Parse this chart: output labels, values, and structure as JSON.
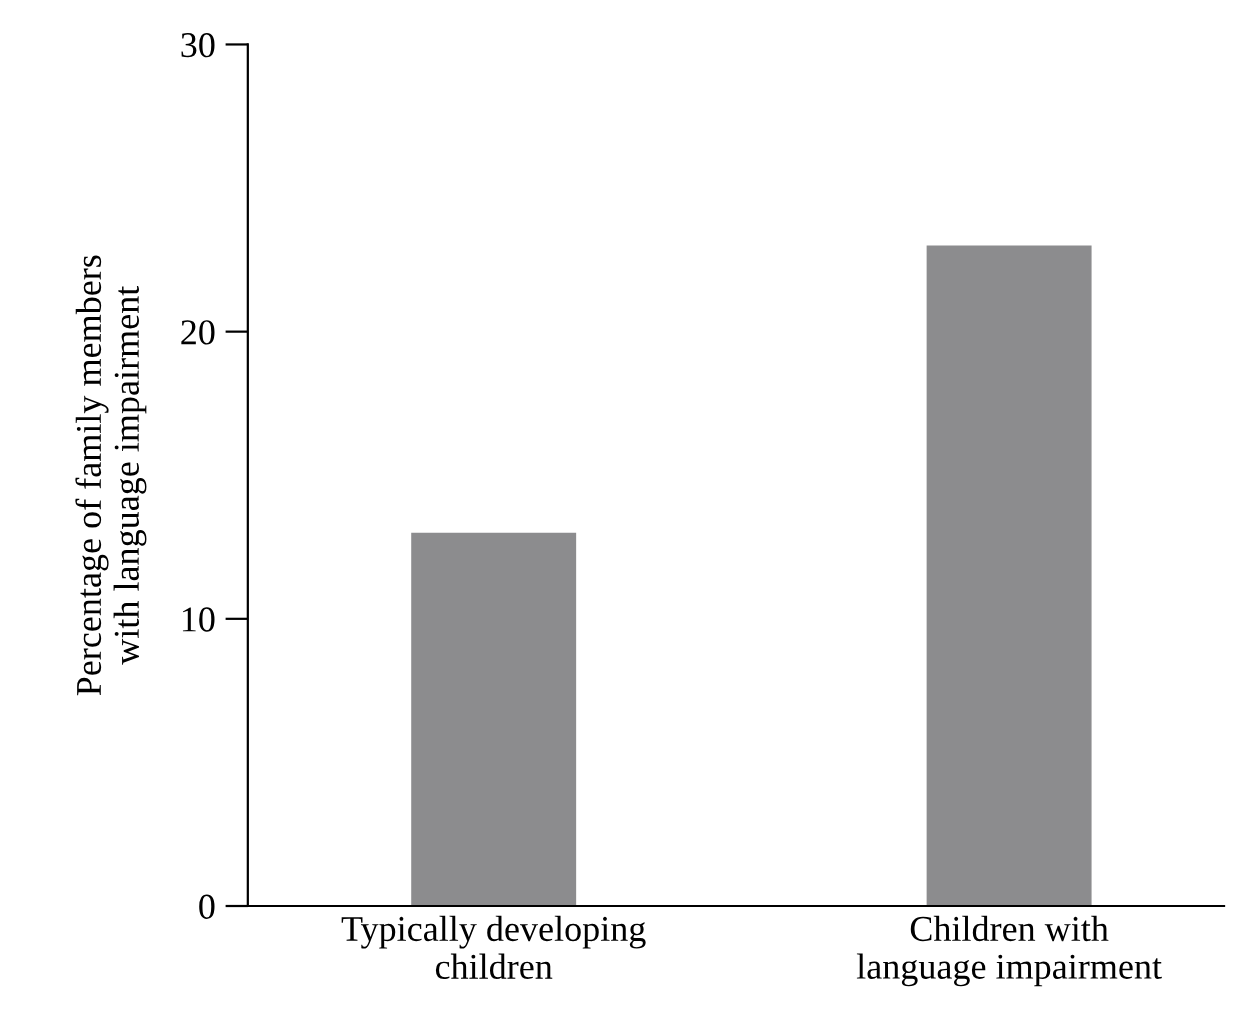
{
  "chart_data": {
    "type": "bar",
    "ylabel": "Percentage of family members\nwith language impairment",
    "categories": [
      "Typically developing\nchildren",
      "Children with\nlanguage impairment"
    ],
    "values": [
      13,
      23
    ],
    "color": "#8c8c8e",
    "ylim": [
      0,
      30
    ],
    "yticks": [
      0,
      10,
      20,
      30
    ],
    "grid": false,
    "legend": false
  }
}
